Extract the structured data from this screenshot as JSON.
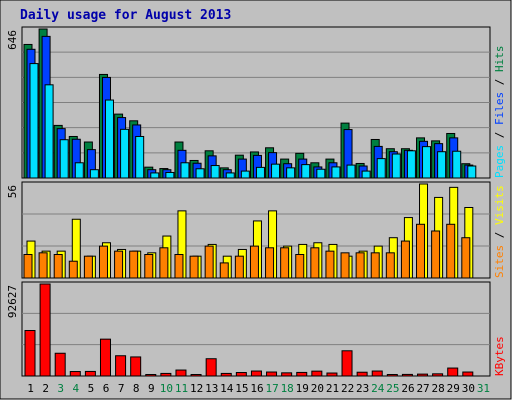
{
  "title": "Daily usage for August 2013",
  "colors": {
    "title": "#0000aa",
    "frame_bg": "#c0c0c0",
    "page_bg": "#ffffff",
    "grid": "#808080",
    "hits": "#008040",
    "files": "#0040ff",
    "pages": "#00e0ff",
    "visits": "#ffff00",
    "sites": "#ff8000",
    "kbytes": "#ff0000",
    "weekday_label": "#000000",
    "weekend_label": "#008040"
  },
  "chart_data": [
    {
      "type": "bar",
      "name": "hits-files-pages",
      "max_label": "646",
      "ylim": [
        0,
        646
      ],
      "legend": [
        {
          "text": "Pages",
          "color": "#00e0ff"
        },
        {
          "text": " / ",
          "color": "#000000"
        },
        {
          "text": "Files",
          "color": "#0040ff"
        },
        {
          "text": " / ",
          "color": "#000000"
        },
        {
          "text": "Hits",
          "color": "#008040"
        }
      ],
      "series": [
        {
          "key": "hits",
          "values": [
            579,
            646,
            228,
            180,
            156,
            449,
            277,
            248,
            47,
            41,
            156,
            76,
            118,
            44,
            99,
            113,
            131,
            82,
            107,
            66,
            82,
            238,
            63,
            167,
            127,
            127,
            174,
            161,
            193,
            62,
            0
          ]
        },
        {
          "key": "files",
          "values": [
            558,
            614,
            214,
            168,
            123,
            436,
            262,
            230,
            36,
            36,
            120,
            64,
            96,
            36,
            82,
            98,
            110,
            62,
            82,
            48,
            66,
            210,
            52,
            137,
            114,
            120,
            159,
            149,
            174,
            56,
            0
          ]
        },
        {
          "key": "pages",
          "values": [
            496,
            404,
            166,
            66,
            36,
            338,
            211,
            180,
            22,
            24,
            66,
            40,
            54,
            22,
            30,
            46,
            60,
            44,
            58,
            38,
            48,
            56,
            30,
            84,
            104,
            118,
            136,
            114,
            116,
            52,
            0
          ]
        }
      ]
    },
    {
      "type": "bar",
      "name": "sites-visits",
      "max_label": "56",
      "ylim": [
        0,
        56
      ],
      "legend": [
        {
          "text": "Sites",
          "color": "#ff8000"
        },
        {
          "text": " / ",
          "color": "#000000"
        },
        {
          "text": "Visits",
          "color": "#ffff00"
        }
      ],
      "series": [
        {
          "key": "visits",
          "values": [
            22,
            16,
            16,
            35,
            13,
            21,
            17,
            16,
            15,
            25,
            40,
            13,
            20,
            13,
            17,
            34,
            40,
            19,
            20,
            21,
            20,
            13,
            16,
            19,
            24,
            36,
            56,
            48,
            54,
            42,
            0
          ]
        },
        {
          "key": "sites",
          "values": [
            14,
            15,
            14,
            10,
            13,
            19,
            16,
            16,
            14,
            18,
            14,
            13,
            19,
            9,
            13,
            19,
            18,
            18,
            14,
            18,
            16,
            15,
            15,
            15,
            15,
            22,
            32,
            28,
            32,
            24,
            0
          ]
        }
      ]
    },
    {
      "type": "bar",
      "name": "kbytes",
      "max_label": "92627",
      "ylim": [
        0,
        92627
      ],
      "legend": [
        {
          "text": "KBytes",
          "color": "#ff0000"
        }
      ],
      "series": [
        {
          "key": "kbytes",
          "values": [
            45800,
            92627,
            22900,
            4500,
            4600,
            37100,
            20400,
            19200,
            1500,
            2600,
            6000,
            1500,
            17400,
            2600,
            3500,
            5000,
            4000,
            3200,
            3600,
            4900,
            3000,
            25400,
            3800,
            5000,
            1500,
            1600,
            1900,
            2200,
            8000,
            4000,
            0
          ]
        }
      ]
    }
  ],
  "days": [
    {
      "label": "1",
      "weekend": false
    },
    {
      "label": "2",
      "weekend": false
    },
    {
      "label": "3",
      "weekend": true
    },
    {
      "label": "4",
      "weekend": true
    },
    {
      "label": "5",
      "weekend": false
    },
    {
      "label": "6",
      "weekend": false
    },
    {
      "label": "7",
      "weekend": false
    },
    {
      "label": "8",
      "weekend": false
    },
    {
      "label": "9",
      "weekend": false
    },
    {
      "label": "10",
      "weekend": true
    },
    {
      "label": "11",
      "weekend": true
    },
    {
      "label": "12",
      "weekend": false
    },
    {
      "label": "13",
      "weekend": false
    },
    {
      "label": "14",
      "weekend": false
    },
    {
      "label": "15",
      "weekend": false
    },
    {
      "label": "16",
      "weekend": false
    },
    {
      "label": "17",
      "weekend": true
    },
    {
      "label": "18",
      "weekend": true
    },
    {
      "label": "19",
      "weekend": false
    },
    {
      "label": "20",
      "weekend": false
    },
    {
      "label": "21",
      "weekend": false
    },
    {
      "label": "22",
      "weekend": false
    },
    {
      "label": "23",
      "weekend": false
    },
    {
      "label": "24",
      "weekend": true
    },
    {
      "label": "25",
      "weekend": true
    },
    {
      "label": "26",
      "weekend": false
    },
    {
      "label": "27",
      "weekend": false
    },
    {
      "label": "28",
      "weekend": false
    },
    {
      "label": "29",
      "weekend": false
    },
    {
      "label": "30",
      "weekend": false
    },
    {
      "label": "31",
      "weekend": true
    }
  ]
}
